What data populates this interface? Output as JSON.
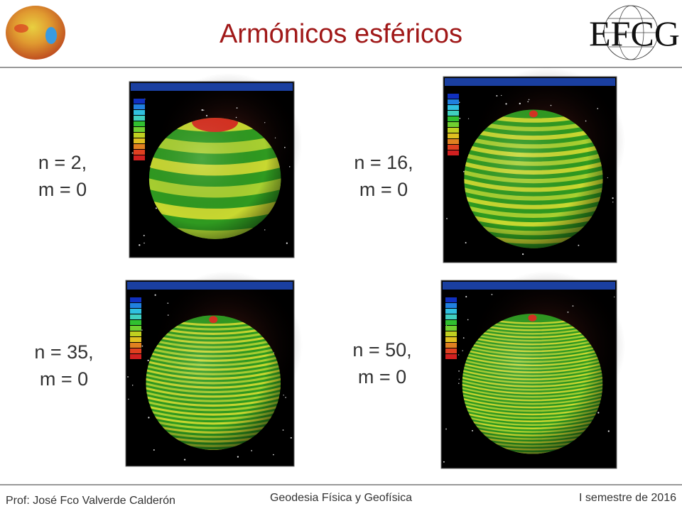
{
  "header": {
    "title": "Armónicos esféricos",
    "logo_text": "EFCG"
  },
  "panels": [
    {
      "label": [
        "n = 2,",
        "m = 0"
      ]
    },
    {
      "label": [
        "n = 16,",
        "m = 0"
      ]
    },
    {
      "label": [
        "n = 35,",
        "m = 0"
      ]
    },
    {
      "label": [
        "n = 50,",
        "m = 0"
      ]
    }
  ],
  "footer": {
    "left": "Prof: José Fco Valverde Calderón",
    "center": "Geodesia Física y Geofísica",
    "right": "I semestre de 2016"
  }
}
